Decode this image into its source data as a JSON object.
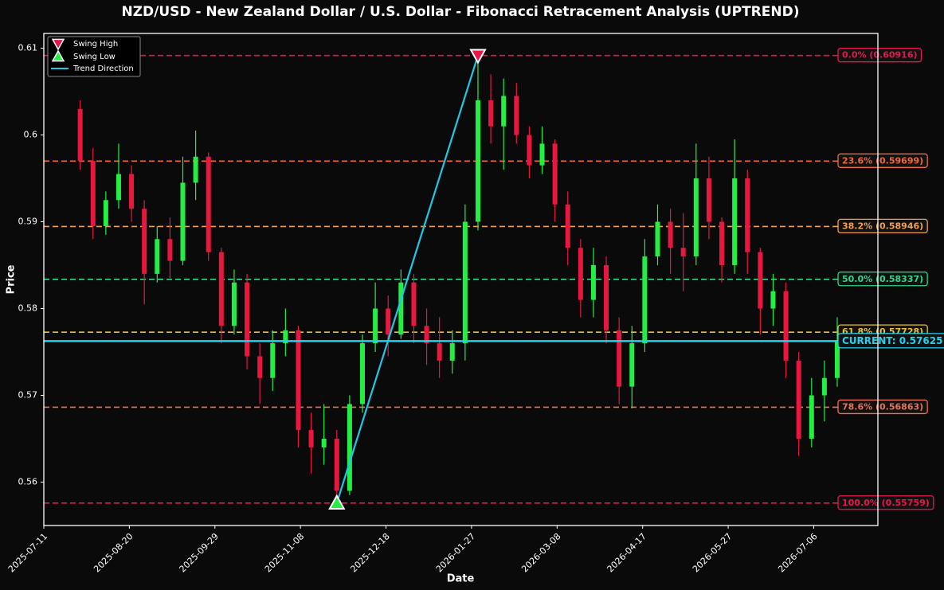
{
  "chart_data": {
    "type": "candlestick",
    "title": "NZD/USD - New Zealand Dollar / U.S. Dollar - Fibonacci Retracement Analysis (UPTREND)",
    "x_label": "Date",
    "y_label": "Price",
    "x": [
      "2025-07-28",
      "2025-08-03",
      "2025-08-09",
      "2025-08-15",
      "2025-08-21",
      "2025-08-27",
      "2025-09-02",
      "2025-09-08",
      "2025-09-14",
      "2025-09-20",
      "2025-09-26",
      "2025-10-02",
      "2025-10-08",
      "2025-10-14",
      "2025-10-20",
      "2025-10-26",
      "2025-11-01",
      "2025-11-07",
      "2025-11-13",
      "2025-11-19",
      "2025-11-25",
      "2025-12-01",
      "2025-12-07",
      "2025-12-13",
      "2025-12-19",
      "2025-12-25",
      "2025-12-31",
      "2026-01-06",
      "2026-01-12",
      "2026-01-18",
      "2026-01-24",
      "2026-01-30",
      "2026-02-05",
      "2026-02-11",
      "2026-02-17",
      "2026-02-23",
      "2026-03-01",
      "2026-03-07",
      "2026-03-13",
      "2026-03-19",
      "2026-03-25",
      "2026-03-31",
      "2026-04-06",
      "2026-04-12",
      "2026-04-18",
      "2026-04-24",
      "2026-04-30",
      "2026-05-06",
      "2026-05-12",
      "2026-05-18",
      "2026-05-24",
      "2026-05-30",
      "2026-06-05",
      "2026-06-11",
      "2026-06-17",
      "2026-06-23",
      "2026-06-29",
      "2026-07-05",
      "2026-07-11",
      "2026-07-17"
    ],
    "open": [
      0.603,
      0.597,
      0.5895,
      0.5925,
      0.5955,
      0.5915,
      0.584,
      0.588,
      0.5855,
      0.5945,
      0.5975,
      0.5865,
      0.578,
      0.583,
      0.5745,
      0.572,
      0.576,
      0.5775,
      0.566,
      0.564,
      0.565,
      0.559,
      0.569,
      0.576,
      0.58,
      0.577,
      0.583,
      0.578,
      0.576,
      0.574,
      0.576,
      0.59,
      0.604,
      0.601,
      0.6045,
      0.6,
      0.5965,
      0.599,
      0.592,
      0.587,
      0.581,
      0.585,
      0.5775,
      0.571,
      0.576,
      0.586,
      0.59,
      0.587,
      0.586,
      0.595,
      0.59,
      0.585,
      0.595,
      0.5865,
      0.58,
      0.582,
      0.574,
      0.565,
      0.57,
      0.572
    ],
    "high": [
      0.604,
      0.5985,
      0.5935,
      0.599,
      0.5965,
      0.5925,
      0.5895,
      0.5905,
      0.5975,
      0.6005,
      0.598,
      0.587,
      0.5845,
      0.584,
      0.576,
      0.5775,
      0.58,
      0.578,
      0.568,
      0.569,
      0.566,
      0.57,
      0.577,
      0.583,
      0.5815,
      0.5845,
      0.584,
      0.58,
      0.579,
      0.5775,
      0.592,
      0.60916,
      0.607,
      0.6065,
      0.606,
      0.601,
      0.601,
      0.5995,
      0.5935,
      0.588,
      0.587,
      0.586,
      0.579,
      0.578,
      0.588,
      0.592,
      0.5915,
      0.591,
      0.599,
      0.5975,
      0.5905,
      0.5995,
      0.596,
      0.587,
      0.584,
      0.583,
      0.575,
      0.572,
      0.574,
      0.579
    ],
    "low": [
      0.596,
      0.588,
      0.5885,
      0.5915,
      0.59,
      0.5805,
      0.583,
      0.5835,
      0.585,
      0.5925,
      0.5855,
      0.576,
      0.577,
      0.573,
      0.569,
      0.5705,
      0.5745,
      0.564,
      0.561,
      0.562,
      0.55759,
      0.5585,
      0.568,
      0.575,
      0.5745,
      0.5765,
      0.576,
      0.5735,
      0.572,
      0.5725,
      0.574,
      0.589,
      0.599,
      0.596,
      0.599,
      0.595,
      0.5955,
      0.59,
      0.585,
      0.579,
      0.579,
      0.576,
      0.569,
      0.5685,
      0.575,
      0.585,
      0.584,
      0.582,
      0.585,
      0.588,
      0.583,
      0.584,
      0.584,
      0.577,
      0.578,
      0.572,
      0.563,
      0.564,
      0.567,
      0.571
    ],
    "close": [
      0.597,
      0.5895,
      0.5925,
      0.5955,
      0.5915,
      0.584,
      0.588,
      0.5855,
      0.5945,
      0.5975,
      0.5865,
      0.578,
      0.583,
      0.5745,
      0.572,
      0.576,
      0.5775,
      0.566,
      0.564,
      0.565,
      0.559,
      0.569,
      0.576,
      0.58,
      0.577,
      0.583,
      0.578,
      0.576,
      0.574,
      0.576,
      0.59,
      0.604,
      0.601,
      0.6045,
      0.6,
      0.5965,
      0.599,
      0.592,
      0.587,
      0.581,
      0.585,
      0.5775,
      0.571,
      0.576,
      0.586,
      0.59,
      0.587,
      0.586,
      0.595,
      0.59,
      0.585,
      0.595,
      0.5865,
      0.58,
      0.582,
      0.574,
      0.565,
      0.57,
      0.572,
      0.57625
    ],
    "up_color": "#22ee44",
    "down_color": "#e8173f",
    "xlim": [
      "2025-07-11",
      "2026-08-05"
    ],
    "xticks": [
      "2025-07-11",
      "2025-08-20",
      "2025-09-29",
      "2025-11-08",
      "2025-12-18",
      "2026-01-27",
      "2026-03-08",
      "2026-04-17",
      "2026-05-27",
      "2026-07-06"
    ],
    "ylim": [
      0.555,
      0.6117
    ],
    "yticks": [
      0.56,
      0.57,
      0.58,
      0.59,
      0.6,
      0.61
    ],
    "levels": [
      {
        "label": "0.0% (0.60916)",
        "value": 0.60916,
        "color": "#e8174a"
      },
      {
        "label": "23.6% (0.59699)",
        "value": 0.59699,
        "color": "#f0683c"
      },
      {
        "label": "38.2% (0.58946)",
        "value": 0.58946,
        "color": "#f0a050"
      },
      {
        "label": "50.0% (0.58337)",
        "value": 0.58337,
        "color": "#2ed888"
      },
      {
        "label": "61.8% (0.57728)",
        "value": 0.57728,
        "color": "#e8c030"
      },
      {
        "label": "78.6% (0.56863)",
        "value": 0.56863,
        "color": "#f07050"
      },
      {
        "label": "100.0% (0.55759)",
        "value": 0.55759,
        "color": "#e8174a"
      }
    ],
    "current": {
      "label": "CURRENT: 0.57625",
      "value": 0.57625,
      "color": "#22d3ee"
    },
    "swing_high": {
      "name": "Swing High",
      "x": "2026-01-30",
      "value": 0.60916,
      "color": "#e8174a"
    },
    "swing_low": {
      "name": "Swing Low",
      "x": "2025-11-25",
      "value": 0.55759,
      "color": "#22ee44"
    },
    "trend": {
      "name": "Trend Direction",
      "color": "#1ec8e6"
    },
    "legend": "upper left"
  }
}
